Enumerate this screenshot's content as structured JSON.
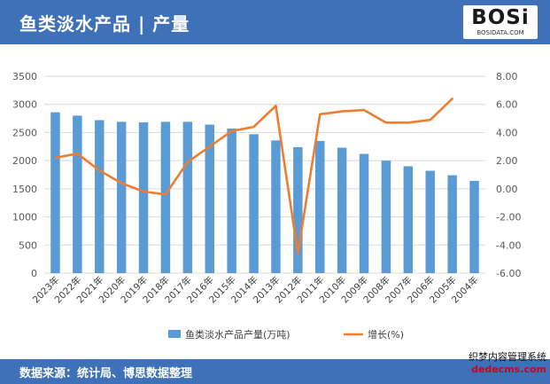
{
  "header": {
    "title": "鱼类淡水产品 | 产量",
    "logo_text": "BOSi",
    "logo_sub": "BOSIDATA.COM",
    "header_color": "#3E71B8"
  },
  "footer": {
    "source": "数据来源：统计局、博思数据整理"
  },
  "corner_watermark": {
    "line1": "织梦内容管理系统",
    "line2": "dedecms.com"
  },
  "chart_data": {
    "type": "bar",
    "categories": [
      "2023年",
      "2022年",
      "2021年",
      "2020年",
      "2019年",
      "2018年",
      "2017年",
      "2016年",
      "2015年",
      "2014年",
      "2013年",
      "2012年",
      "2011年",
      "2010年",
      "2009年",
      "2008年",
      "2007年",
      "2006年",
      "2005年",
      "2004年"
    ],
    "series": [
      {
        "name": "鱼类淡水产品产量(万吨)",
        "type": "bar",
        "axis": "left",
        "color": "#5B9BD5",
        "values": [
          2860,
          2800,
          2720,
          2690,
          2680,
          2690,
          2690,
          2640,
          2570,
          2470,
          2360,
          2240,
          2350,
          2230,
          2120,
          2000,
          1900,
          1820,
          1740,
          1640
        ]
      },
      {
        "name": "增长(%)",
        "type": "line",
        "axis": "right",
        "color": "#ED7D31",
        "values": [
          2.2,
          2.5,
          1.3,
          0.4,
          -0.2,
          -0.4,
          1.9,
          3.0,
          4.1,
          4.4,
          5.9,
          -4.6,
          5.3,
          5.5,
          5.6,
          4.7,
          4.7,
          4.9,
          6.4,
          null
        ]
      }
    ],
    "y_left": {
      "min": 0,
      "max": 3500,
      "ticks": [
        "0",
        "500",
        "1000",
        "1500",
        "2000",
        "2500",
        "3000",
        "3500"
      ]
    },
    "y_right": {
      "min": -6,
      "max": 8,
      "ticks": [
        "-6.00",
        "-4.00",
        "-2.00",
        "0.00",
        "2.00",
        "4.00",
        "6.00",
        "8.00"
      ]
    },
    "grid": true,
    "legend_position": "bottom"
  }
}
